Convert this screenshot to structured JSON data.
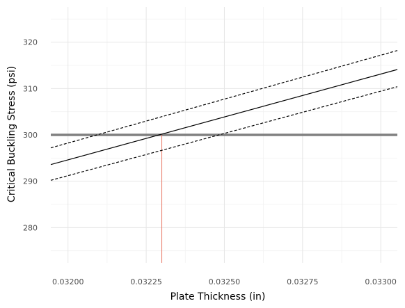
{
  "chart_data": {
    "type": "line",
    "title": "",
    "xlabel": "Plate Thickness (in)",
    "ylabel": "Critical Buckling Stress (psi)",
    "xlim": [
      0.031945,
      0.033053
    ],
    "ylim": [
      272.4,
      327.6
    ],
    "x_ticks": [
      0.032,
      0.03225,
      0.0325,
      0.03275,
      0.033
    ],
    "x_tick_labels": [
      "0.03200",
      "0.03225",
      "0.03250",
      "0.03275",
      "0.03300"
    ],
    "y_ticks": [
      280,
      290,
      300,
      310,
      320
    ],
    "y_tick_labels": [
      "280",
      "290",
      "300",
      "310",
      "320"
    ],
    "grid": true,
    "series": [
      {
        "style": "solid",
        "color": "#000000",
        "x": [
          0.031945,
          0.033053
        ],
        "y": [
          293.6,
          314.1
        ]
      },
      {
        "style": "dashed",
        "color": "#000000",
        "x": [
          0.031945,
          0.033053
        ],
        "y": [
          297.2,
          318.2
        ]
      },
      {
        "style": "dashed",
        "color": "#000000",
        "x": [
          0.031945,
          0.033053
        ],
        "y": [
          290.2,
          310.4
        ]
      }
    ],
    "reference_lines": [
      {
        "orientation": "horizontal",
        "value": 300,
        "color": "#808080"
      },
      {
        "orientation": "vertical",
        "value": 0.0323,
        "color": "#e8735f",
        "to_y": 300
      }
    ]
  }
}
